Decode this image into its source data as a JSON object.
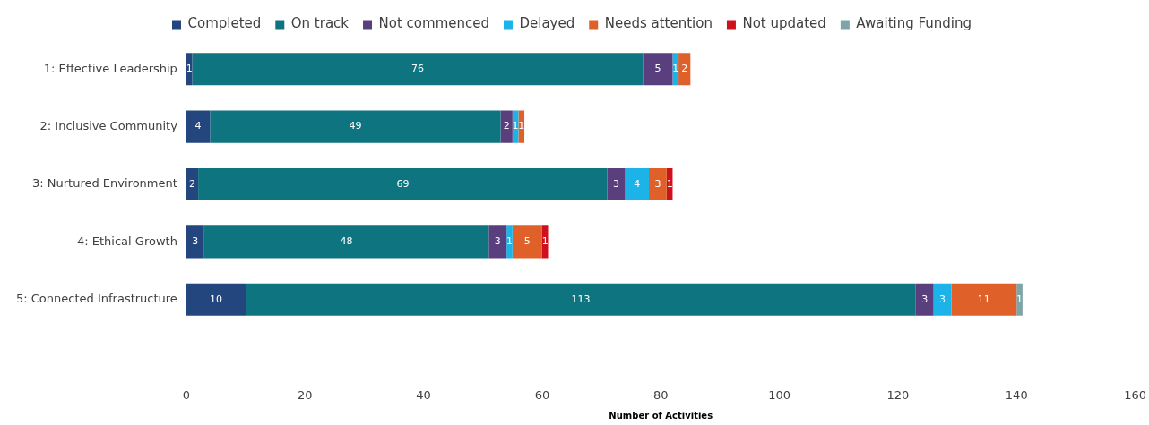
{
  "chart_data": {
    "type": "bar",
    "orientation": "horizontal",
    "stacked": true,
    "xlabel": "Number of Activities",
    "categories": [
      "1: Effective Leadership",
      "2: Inclusive Community",
      "3: Nurtured Environment",
      "4: Ethical Growth",
      "5: Connected Infrastructure",
      null
    ],
    "series": [
      {
        "name": "Completed",
        "color": "#24467f",
        "values": [
          1,
          4,
          2,
          3,
          10,
          null
        ]
      },
      {
        "name": "On track",
        "color": "#0e7580",
        "values": [
          76,
          49,
          69,
          48,
          113,
          null
        ]
      },
      {
        "name": "Not commenced",
        "color": "#5a3f7e",
        "values": [
          5,
          2,
          3,
          3,
          3,
          null
        ]
      },
      {
        "name": "Delayed",
        "color": "#1cb4e8",
        "values": [
          1,
          1,
          4,
          1,
          3,
          null
        ]
      },
      {
        "name": "Needs attention",
        "color": "#e0602a",
        "values": [
          2,
          1,
          3,
          5,
          11,
          null
        ]
      },
      {
        "name": "Not updated",
        "color": "#d0101c",
        "values": [
          null,
          null,
          1,
          1,
          null,
          null
        ]
      },
      {
        "name": "Awaiting Funding",
        "color": "#7fa4a8",
        "values": [
          null,
          null,
          null,
          null,
          1,
          null
        ]
      }
    ],
    "xlim": [
      0,
      160
    ],
    "xticks": [
      0,
      20,
      40,
      60,
      80,
      100,
      120,
      140,
      160
    ],
    "grid": false,
    "legend": "top",
    "data_labels": true
  }
}
